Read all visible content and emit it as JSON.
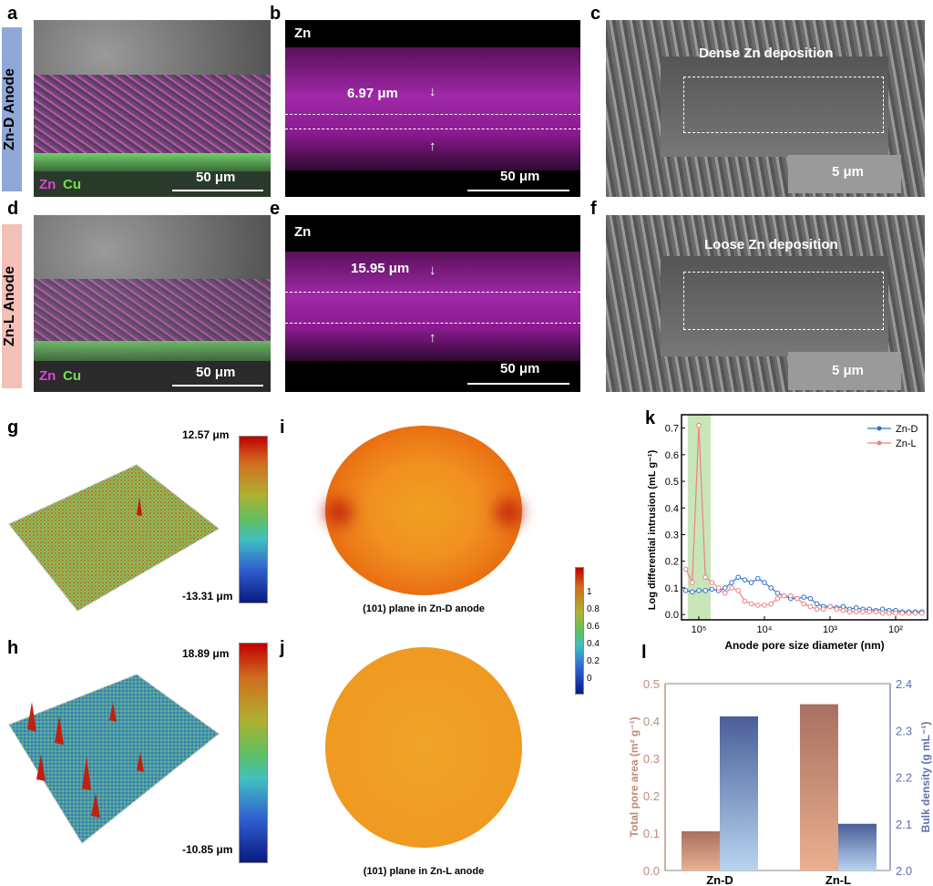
{
  "panels": {
    "a": {
      "label": "a",
      "side": "Zn-D Anode",
      "legend_zn": "Zn",
      "legend_cu": "Cu",
      "scale": "50 μm"
    },
    "b": {
      "label": "b",
      "element": "Zn",
      "thickness": "6.97 μm",
      "scale": "50 μm"
    },
    "c": {
      "label": "c",
      "title": "Dense Zn deposition",
      "scale": "5 μm"
    },
    "d": {
      "label": "d",
      "side": "Zn-L Anode",
      "legend_zn": "Zn",
      "legend_cu": "Cu",
      "scale": "50 μm"
    },
    "e": {
      "label": "e",
      "element": "Zn",
      "thickness": "15.95 μm",
      "scale": "50 μm"
    },
    "f": {
      "label": "f",
      "title": "Loose Zn deposition",
      "scale": "5 μm"
    },
    "g": {
      "label": "g",
      "max": "12.57 μm",
      "min": "-13.31 μm"
    },
    "h": {
      "label": "h",
      "max": "18.89 μm",
      "min": "-10.85 μm"
    },
    "i": {
      "label": "i",
      "caption": "(101) plane in Zn-D anode"
    },
    "j": {
      "label": "j",
      "caption": "(101) plane in Zn-L anode"
    },
    "colorbar": {
      "ticks": [
        "1",
        "0.8",
        "0.6",
        "0.4",
        "0.2",
        "0"
      ]
    },
    "k": {
      "label": "k"
    },
    "l": {
      "label": "l"
    }
  },
  "colors": {
    "zn": "#d040d0",
    "cu": "#60d040",
    "znd": "#3070d0",
    "znl": "#f08080",
    "band": "#c8e6b8"
  },
  "chart_data": [
    {
      "type": "line",
      "panel": "k",
      "xlabel": "Anode pore size diameter (nm)",
      "ylabel": "Log differential intrusion (mL g⁻¹)",
      "xscale": "log",
      "xreversed": true,
      "xticks": [
        "10⁵",
        "10⁴",
        "10³",
        "10²"
      ],
      "yticks": [
        "0.0",
        "0.1",
        "0.2",
        "0.3",
        "0.4",
        "0.5",
        "0.6",
        "0.7"
      ],
      "ylim": [
        -0.02,
        0.75
      ],
      "highlight_log10": [
        4.82,
        5.17
      ],
      "legend": "top-right",
      "x_log10": [
        5.2,
        5.1,
        5.0,
        4.9,
        4.8,
        4.7,
        4.6,
        4.5,
        4.4,
        4.3,
        4.2,
        4.1,
        4.0,
        3.9,
        3.8,
        3.7,
        3.6,
        3.5,
        3.4,
        3.3,
        3.2,
        3.1,
        3.0,
        2.9,
        2.8,
        2.7,
        2.6,
        2.5,
        2.4,
        2.3,
        2.2,
        2.1,
        2.0,
        1.9,
        1.8,
        1.7,
        1.6
      ],
      "series": [
        {
          "name": "Zn-D",
          "values": [
            0.09,
            0.085,
            0.09,
            0.09,
            0.095,
            0.09,
            0.1,
            0.12,
            0.14,
            0.13,
            0.12,
            0.135,
            0.12,
            0.1,
            0.08,
            0.07,
            0.06,
            0.06,
            0.065,
            0.06,
            0.04,
            0.03,
            0.03,
            0.025,
            0.03,
            0.02,
            0.025,
            0.02,
            0.02,
            0.015,
            0.02,
            0.015,
            0.015,
            0.01,
            0.01,
            0.01,
            0.01
          ]
        },
        {
          "name": "Zn-L",
          "values": [
            0.17,
            0.12,
            0.71,
            0.14,
            0.12,
            0.1,
            0.08,
            0.1,
            0.09,
            0.05,
            0.04,
            0.035,
            0.035,
            0.04,
            0.06,
            0.07,
            0.07,
            0.06,
            0.04,
            0.03,
            0.02,
            0.02,
            0.03,
            0.02,
            0.015,
            0.01,
            0.01,
            0.01,
            0.01,
            0.01,
            0.005,
            0.005,
            0.005,
            0.005,
            0.005,
            0.005,
            0.005
          ]
        }
      ]
    },
    {
      "type": "bar",
      "panel": "l",
      "categories": [
        "Zn-D",
        "Zn-L"
      ],
      "ylabel_left": "Total pore area (m² g⁻¹)",
      "ylabel_right": "Bulk density (g mL⁻¹)",
      "ylim_left": [
        0,
        0.5
      ],
      "ylim_right": [
        2.0,
        2.4
      ],
      "yticks_left": [
        "0.0",
        "0.1",
        "0.2",
        "0.3",
        "0.4",
        "0.5"
      ],
      "yticks_right": [
        "2.0",
        "2.1",
        "2.2",
        "2.3",
        "2.4"
      ],
      "series": [
        {
          "name": "Total pore area",
          "axis": "left",
          "values": [
            0.105,
            0.445
          ]
        },
        {
          "name": "Bulk density",
          "axis": "right",
          "values": [
            2.33,
            2.1
          ]
        }
      ]
    }
  ]
}
